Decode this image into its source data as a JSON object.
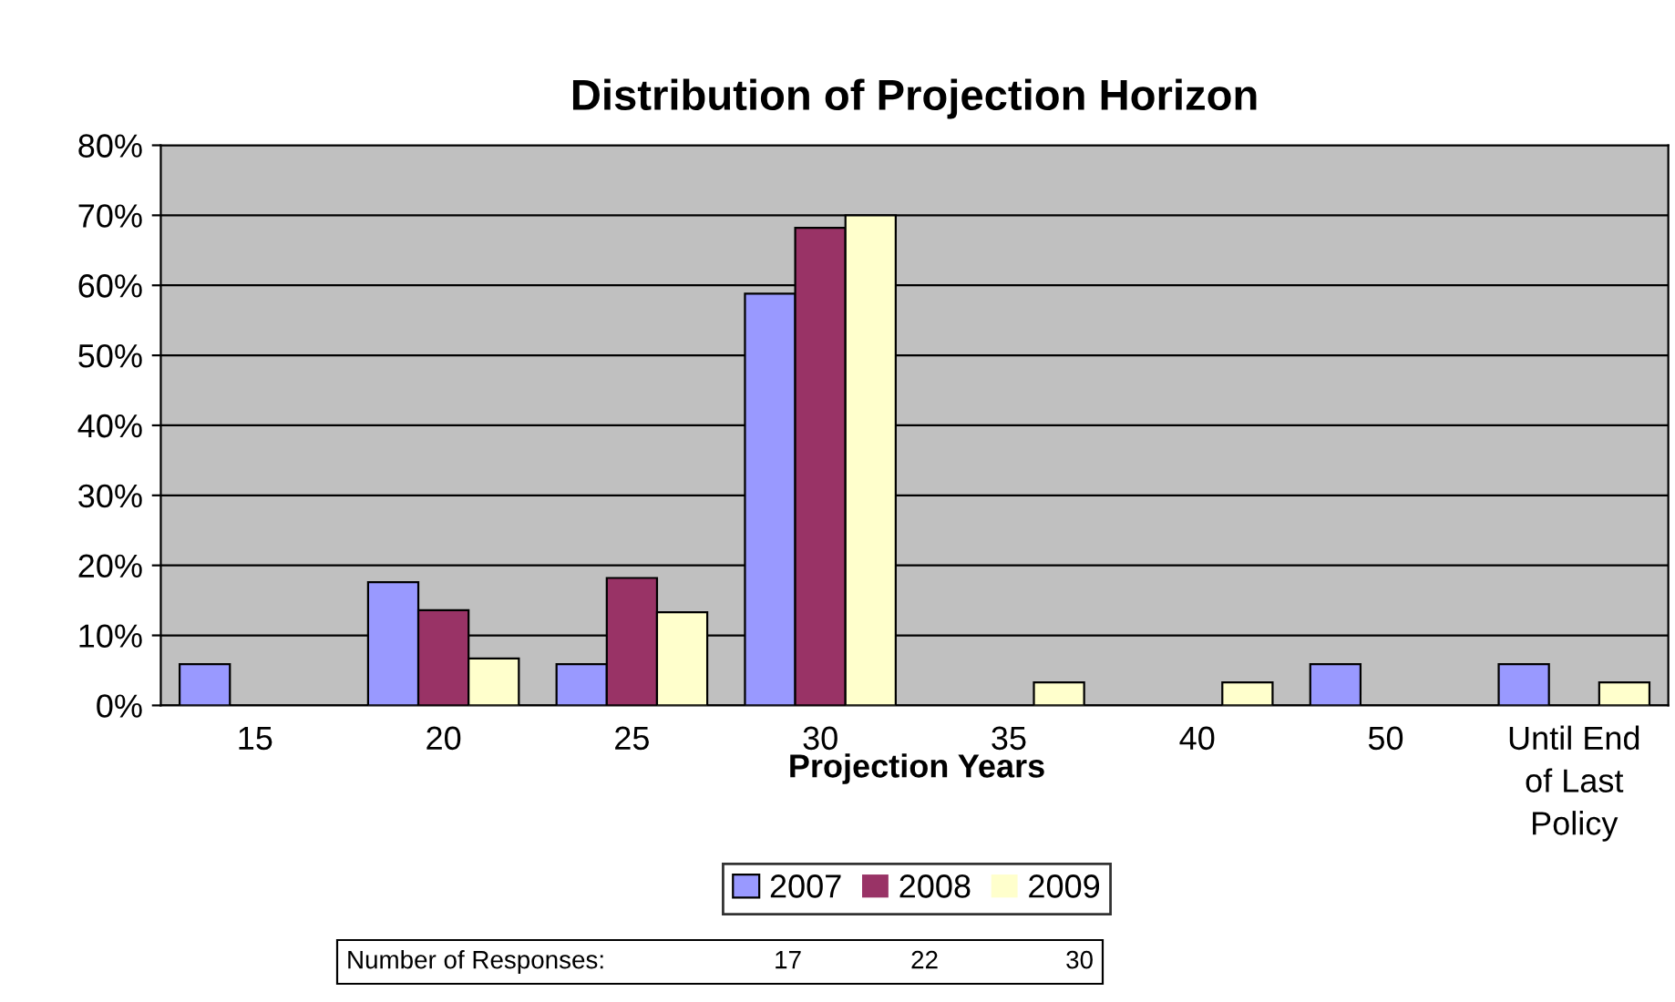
{
  "chart_data": {
    "type": "bar",
    "title": "Distribution of Projection Horizon",
    "xlabel": "Projection Years",
    "categories": [
      "15",
      "20",
      "25",
      "30",
      "35",
      "40",
      "50",
      "Until End\nof Last\nPolicy"
    ],
    "series": [
      {
        "name": "2007",
        "color": "#9999ff",
        "values": [
          5.9,
          17.6,
          5.9,
          58.8,
          0,
          0,
          5.9,
          5.9
        ]
      },
      {
        "name": "2008",
        "color": "#993366",
        "values": [
          0,
          13.6,
          18.2,
          68.2,
          0,
          0,
          0,
          0
        ]
      },
      {
        "name": "2009",
        "color": "#ffffcc",
        "values": [
          0,
          6.7,
          13.3,
          70,
          3.3,
          3.3,
          0,
          3.3
        ]
      }
    ],
    "ylim": [
      0,
      80
    ],
    "yticks": [
      {
        "value": 0,
        "label": "0%"
      },
      {
        "value": 10,
        "label": "10%"
      },
      {
        "value": 20,
        "label": "20%"
      },
      {
        "value": 30,
        "label": "30%"
      },
      {
        "value": 40,
        "label": "40%"
      },
      {
        "value": 50,
        "label": "50%"
      },
      {
        "value": 60,
        "label": "60%"
      },
      {
        "value": 70,
        "label": "70%"
      },
      {
        "value": 80,
        "label": "80%"
      }
    ],
    "grid": "y",
    "legend": "bottom",
    "annotations": [
      "Number of Responses:",
      "17",
      "22",
      "30"
    ]
  }
}
